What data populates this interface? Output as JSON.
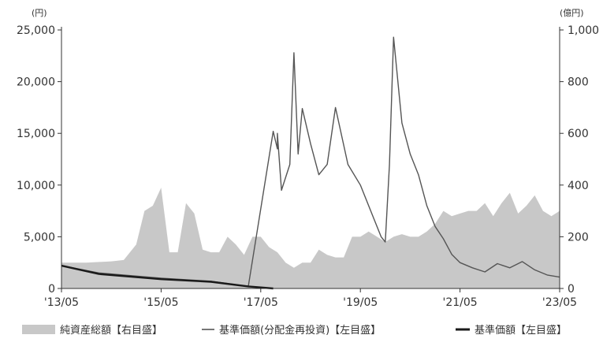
{
  "chart_data": {
    "type": "line",
    "title": "",
    "y_left_unit": "(円)",
    "y_right_unit": "(億円)",
    "x_ticks": [
      "'13/05",
      "'15/05",
      "'17/05",
      "'19/05",
      "'21/05",
      "'23/05"
    ],
    "y_left_ticks": [
      "25,000",
      "20,000",
      "15,000",
      "10,000",
      "5,000",
      "0"
    ],
    "y_right_ticks": [
      "1,000",
      "800",
      "600",
      "400",
      "200",
      "0"
    ],
    "y_left_range": [
      0,
      25000
    ],
    "y_right_range": [
      0,
      1000
    ],
    "x_range": [
      "2013-05",
      "2023-05"
    ],
    "legend_position": "bottom",
    "colors": {
      "net_assets": "#c8c8c8",
      "nav_reinvested": "#555555",
      "nav": "#1a1a1a",
      "axis": "#333333"
    },
    "series": [
      {
        "name": "純資産総額【右目盛】",
        "type": "area",
        "axis": "right",
        "x": [
          "2013-05",
          "2013-11",
          "2014-05",
          "2014-08",
          "2014-11",
          "2015-01",
          "2015-03",
          "2015-05",
          "2015-07",
          "2015-09",
          "2015-11",
          "2016-01",
          "2016-03",
          "2016-05",
          "2016-07",
          "2016-09",
          "2016-11",
          "2017-01",
          "2017-03",
          "2017-05",
          "2017-07",
          "2017-09",
          "2017-11",
          "2018-01",
          "2018-03",
          "2018-05",
          "2018-07",
          "2018-09",
          "2018-11",
          "2019-01",
          "2019-03",
          "2019-05",
          "2019-07",
          "2019-09",
          "2019-11",
          "2020-01",
          "2020-03",
          "2020-05",
          "2020-07",
          "2020-09",
          "2020-11",
          "2021-01",
          "2021-03",
          "2021-05",
          "2021-07",
          "2021-09",
          "2021-11",
          "2022-01",
          "2022-03",
          "2022-05",
          "2022-07",
          "2022-09",
          "2022-11",
          "2023-01",
          "2023-03",
          "2023-05"
        ],
        "values": [
          100,
          100,
          105,
          110,
          170,
          300,
          320,
          390,
          140,
          140,
          330,
          290,
          150,
          140,
          140,
          200,
          170,
          130,
          200,
          200,
          160,
          140,
          100,
          80,
          100,
          100,
          150,
          130,
          120,
          120,
          200,
          200,
          220,
          200,
          180,
          200,
          210,
          200,
          200,
          220,
          250,
          300,
          280,
          290,
          300,
          300,
          330,
          280,
          330,
          370,
          290,
          320,
          360,
          300,
          280,
          300
        ]
      },
      {
        "name": "基準価額(分配金再投資)【左目盛】",
        "type": "line",
        "axis": "left",
        "x": [
          "2013-05",
          "2014-02",
          "2015-05",
          "2016-05",
          "2017-02",
          "2017-08",
          "2017-09",
          "2017-09",
          "2017-10",
          "2017-12",
          "2018-01",
          "2018-02",
          "2018-03",
          "2018-05",
          "2018-07",
          "2018-09",
          "2018-11",
          "2019-02",
          "2019-05",
          "2019-08",
          "2019-10",
          "2019-11",
          "2019-12",
          "2020-01",
          "2020-03",
          "2020-05",
          "2020-07",
          "2020-09",
          "2020-11",
          "2021-01",
          "2021-03",
          "2021-05",
          "2021-08",
          "2021-11",
          "2022-02",
          "2022-05",
          "2022-08",
          "2022-11",
          "2023-02",
          "2023-05"
        ],
        "values": [
          2200,
          1500,
          1000,
          700,
          200,
          15200,
          13500,
          15000,
          9500,
          12000,
          22800,
          13000,
          17400,
          14000,
          11000,
          12000,
          17500,
          12000,
          10000,
          7000,
          5000,
          4500,
          12000,
          24300,
          16000,
          13000,
          11000,
          8000,
          6000,
          4800,
          3300,
          2500,
          2000,
          1600,
          2400,
          2000,
          2600,
          1800,
          1300,
          1100
        ]
      },
      {
        "name": "基準価額【左目盛】",
        "type": "line",
        "axis": "left",
        "x": [
          "2013-05",
          "2014-02",
          "2015-05",
          "2016-05",
          "2017-02",
          "2017-08"
        ],
        "values": [
          2200,
          1400,
          900,
          650,
          200,
          0
        ]
      }
    ]
  }
}
